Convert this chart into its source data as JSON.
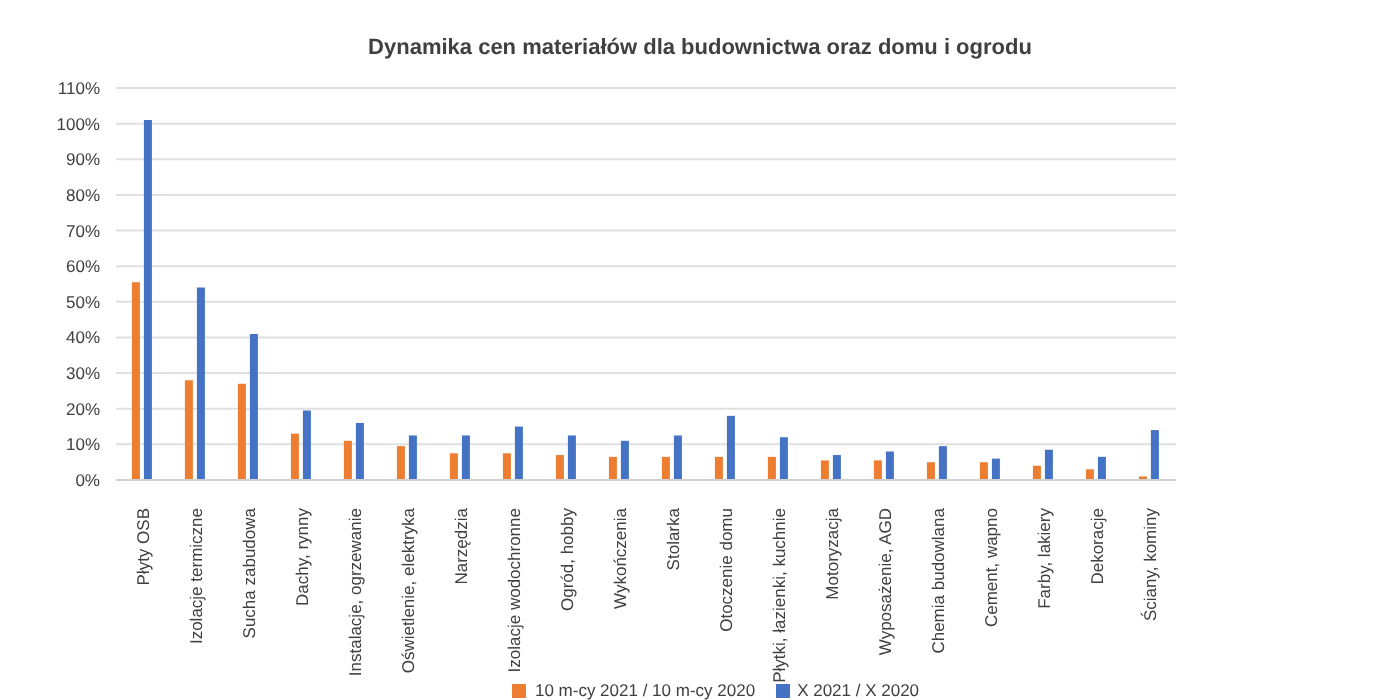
{
  "chart_data": {
    "type": "bar",
    "title": "Dynamika cen materiałów dla budownictwa oraz domu i ogrodu",
    "categories": [
      "Płyty OSB",
      "Izolacje termiczne",
      "Sucha zabudowa",
      "Dachy, rynny",
      "Instalacje, ogrzewanie",
      "Oświetlenie, elektryka",
      "Narzędzia",
      "Izolacje wodochronne",
      "Ogród, hobby",
      "Wykończenia",
      "Stolarka",
      "Otoczenie domu",
      "Płytki, łazienki, kuchnie",
      "Motoryzacja",
      "Wyposażenie, AGD",
      "Chemia budowlana",
      "Cement, wapno",
      "Farby, lakiery",
      "Dekoracje",
      "Ściany, kominy"
    ],
    "series": [
      {
        "name": "10 m-cy 2021 / 10 m-cy 2020",
        "color": "#ed7d31",
        "values": [
          55.5,
          28,
          27,
          13,
          11,
          9.5,
          7.5,
          7.5,
          7,
          6.5,
          6.5,
          6.5,
          6.5,
          5.5,
          5.5,
          5,
          5,
          4,
          3,
          1
        ]
      },
      {
        "name": "X 2021 / X 2020",
        "color": "#4472c4",
        "values": [
          101,
          54,
          41,
          19.5,
          16,
          12.5,
          12.5,
          15,
          12.5,
          11,
          12.5,
          18,
          12,
          7,
          8,
          9.5,
          6,
          8.5,
          6.5,
          14
        ]
      }
    ],
    "ylim": [
      0,
      110
    ],
    "yticks": [
      {
        "value": 0,
        "label": "0%"
      },
      {
        "value": 10,
        "label": "10%"
      },
      {
        "value": 20,
        "label": "20%"
      },
      {
        "value": 30,
        "label": "30%"
      },
      {
        "value": 40,
        "label": "40%"
      },
      {
        "value": 50,
        "label": "50%"
      },
      {
        "value": 60,
        "label": "60%"
      },
      {
        "value": 70,
        "label": "70%"
      },
      {
        "value": 80,
        "label": "80%"
      },
      {
        "value": 90,
        "label": "90%"
      },
      {
        "value": 100,
        "label": "100%"
      },
      {
        "value": 110,
        "label": "110%"
      }
    ],
    "grid": "y",
    "legend": "bottom"
  }
}
